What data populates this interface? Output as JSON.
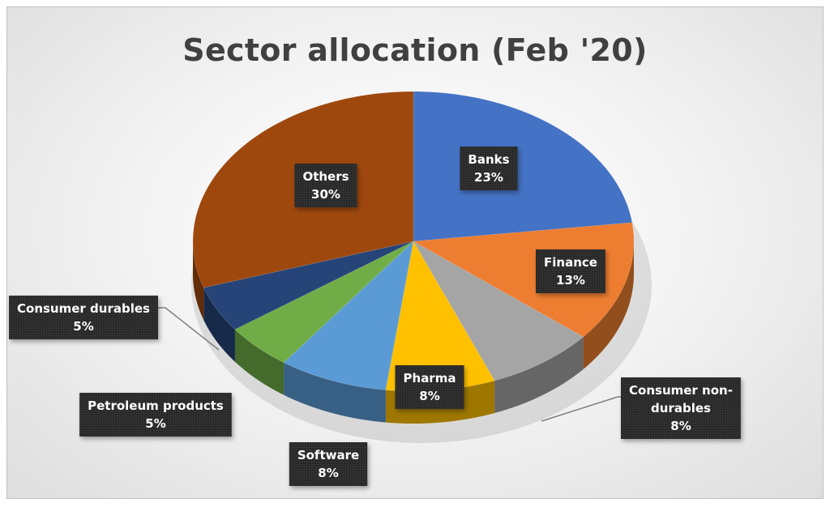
{
  "chart_data": {
    "type": "pie",
    "title": "Sector allocation (Feb '20)",
    "unit": "%",
    "slices": [
      {
        "label": "Banks",
        "label_lines": [
          "Banks"
        ],
        "value": 23,
        "value_text": "23%",
        "color": "#4472c4"
      },
      {
        "label": "Finance",
        "label_lines": [
          "Finance"
        ],
        "value": 13,
        "value_text": "13%",
        "color": "#ed7d31"
      },
      {
        "label": "Consumer non-durables",
        "label_lines": [
          "Consumer non-",
          "durables"
        ],
        "value": 8,
        "value_text": "8%",
        "color": "#a5a5a5"
      },
      {
        "label": "Pharma",
        "label_lines": [
          "Pharma"
        ],
        "value": 8,
        "value_text": "8%",
        "color": "#ffc000"
      },
      {
        "label": "Software",
        "label_lines": [
          "Software"
        ],
        "value": 8,
        "value_text": "8%",
        "color": "#5b9bd5"
      },
      {
        "label": "Petroleum products",
        "label_lines": [
          "Petroleum products"
        ],
        "value": 5,
        "value_text": "5%",
        "color": "#70ad47"
      },
      {
        "label": "Consumer durables",
        "label_lines": [
          "Consumer durables"
        ],
        "value": 5,
        "value_text": "5%",
        "color": "#264478"
      },
      {
        "label": "Others",
        "label_lines": [
          "Others"
        ],
        "value": 30,
        "value_text": "30%",
        "color": "#9e480e"
      }
    ],
    "legend": "none",
    "style": "3d-pie"
  }
}
